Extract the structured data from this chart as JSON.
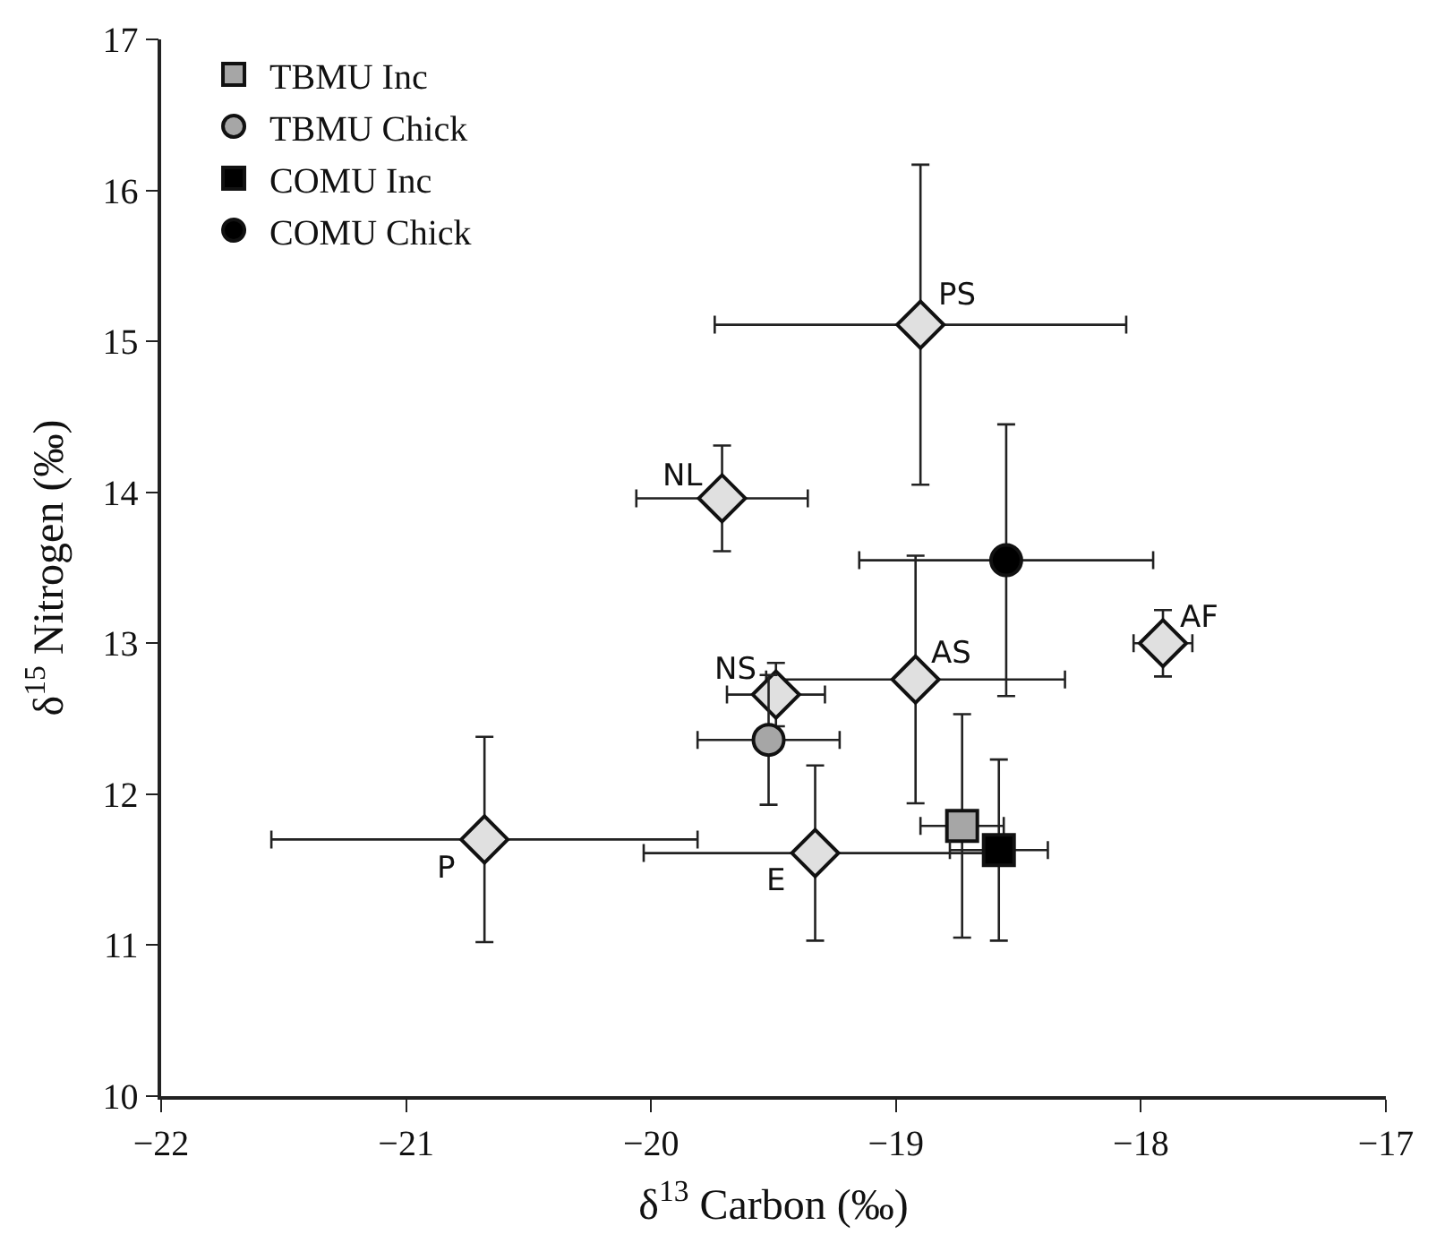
{
  "chart_data": {
    "type": "scatter",
    "xlabel": "δ$^{13}$ Carbon (‰)",
    "ylabel": "δ$^{15}$ Nitrogen (‰)",
    "xlim": [
      -22,
      -17
    ],
    "xticks": [
      {
        "value": -22,
        "label": "−22"
      },
      {
        "value": -21,
        "label": "−21"
      },
      {
        "value": -20,
        "label": "−20"
      },
      {
        "value": -19,
        "label": "−19"
      },
      {
        "value": -18,
        "label": "−18"
      },
      {
        "value": -17,
        "label": "−17"
      }
    ],
    "ylim": [
      10,
      17
    ],
    "yticks": [
      10,
      11,
      12,
      13,
      14,
      15,
      16,
      17
    ],
    "legend": "top left",
    "series": [
      {
        "color": "#e0e0e0",
        "marker": "diamond",
        "x": [
          -18.9,
          -19.71,
          -17.91,
          -18.92,
          -19.49,
          -20.68,
          -19.33
        ],
        "values": [
          15.11,
          13.96,
          13.0,
          12.76,
          12.66,
          11.7,
          11.61
        ],
        "xerrors": [
          0.84,
          0.35,
          0.12,
          0.61,
          0.2,
          0.87,
          0.7
        ],
        "errors": [
          1.06,
          0.35,
          0.22,
          0.82,
          0.21,
          0.68,
          0.58
        ]
      },
      {
        "name": "TBMU Inc",
        "color": "#a6a6a6",
        "marker": "square",
        "x": [
          -18.73
        ],
        "values": [
          11.79
        ],
        "xerrors": [
          0.17
        ],
        "errors": [
          0.74
        ]
      },
      {
        "name": "TBMU Chick",
        "color": "#a6a6a6",
        "marker": "circle",
        "x": [
          -19.52
        ],
        "values": [
          12.36
        ],
        "xerrors": [
          0.29
        ],
        "errors": [
          0.43
        ]
      },
      {
        "name": "COMU Inc",
        "color": "#000000",
        "marker": "square",
        "x": [
          -18.58
        ],
        "values": [
          11.63
        ],
        "xerrors": [
          0.2
        ],
        "errors": [
          0.6
        ]
      },
      {
        "name": "COMU Chick",
        "color": "#000000",
        "marker": "circle",
        "x": [
          -18.55
        ],
        "values": [
          13.55
        ],
        "xerrors": [
          0.6
        ],
        "errors": [
          0.9
        ]
      }
    ],
    "annotations": [
      {
        "text": "PS",
        "x": -18.9,
        "y": 15.11
      },
      {
        "text": "NL",
        "x": -19.71,
        "y": 13.96
      },
      {
        "text": "AF",
        "x": -17.91,
        "y": 13.0
      },
      {
        "text": "AS",
        "x": -18.92,
        "y": 12.76
      },
      {
        "text": "NS",
        "x": -19.49,
        "y": 12.66
      },
      {
        "text": "P",
        "x": -20.68,
        "y": 11.7
      },
      {
        "text": "E",
        "x": -19.33,
        "y": 11.61
      }
    ]
  }
}
